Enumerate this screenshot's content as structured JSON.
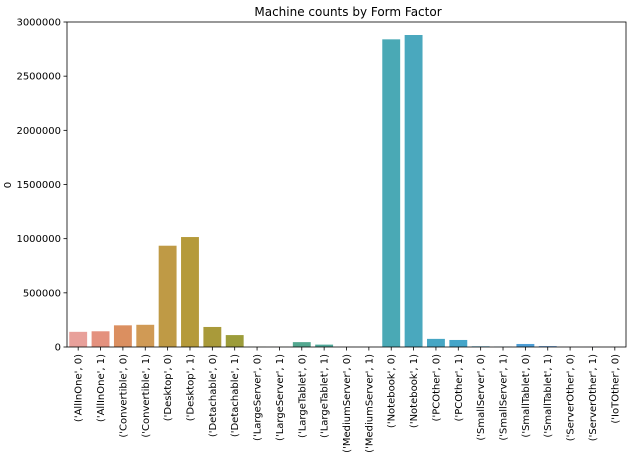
{
  "chart_data": {
    "type": "bar",
    "title": "Machine counts by Form Factor",
    "xlabel": "",
    "ylabel": "0",
    "ylim": [
      0,
      3000000
    ],
    "yticks": [
      0,
      500000,
      1000000,
      1500000,
      2000000,
      2500000,
      3000000
    ],
    "ytick_labels": [
      "0",
      "500000",
      "1000000",
      "1500000",
      "2000000",
      "2500000",
      "3000000"
    ],
    "grid": false,
    "categories": [
      "('AllInOne', 0)",
      "('AllInOne', 1)",
      "('Convertible', 0)",
      "('Convertible', 1)",
      "('Desktop', 0)",
      "('Desktop', 1)",
      "('Detachable', 0)",
      "('Detachable', 1)",
      "('LargeServer', 0)",
      "('LargeServer', 1)",
      "('LargeTablet', 0)",
      "('LargeTablet', 1)",
      "('MediumServer', 0)",
      "('MediumServer', 1)",
      "('Notebook', 0)",
      "('Notebook', 1)",
      "('PCOther', 0)",
      "('PCOther', 1)",
      "('SmallServer', 0)",
      "('SmallServer', 1)",
      "('SmallTablet', 0)",
      "('SmallTablet', 1)",
      "('ServerOther', 0)",
      "('ServerOther', 1)",
      "('IoTOther', 0)"
    ],
    "values": [
      140000,
      145000,
      200000,
      205000,
      935000,
      1015000,
      185000,
      110000,
      1000,
      800,
      45000,
      22000,
      500,
      400,
      2840000,
      2880000,
      75000,
      65000,
      6000,
      2000,
      28000,
      8000,
      300,
      200,
      100
    ],
    "colors": [
      "#e8a09a",
      "#e4917e",
      "#db8f60",
      "#d09a55",
      "#bf9a45",
      "#b59a3a",
      "#a99a3a",
      "#9c9c3a",
      "#8fa03c",
      "#80a43e",
      "#53a890",
      "#4fa99a",
      "#4caaa2",
      "#4aaaa8",
      "#4aa9b5",
      "#4aa8be",
      "#46a6c4",
      "#44a5c9",
      "#3fa3cc",
      "#3aa2d0",
      "#4d9ed6",
      "#5f9adb",
      "#7b95e0",
      "#9490e4",
      "#ab8ce6"
    ]
  }
}
